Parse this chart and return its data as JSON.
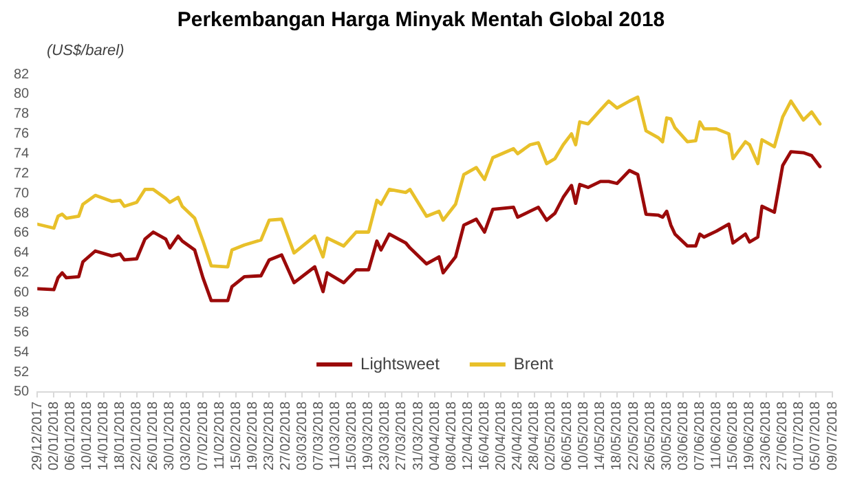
{
  "chart_data": {
    "type": "line",
    "title": "Perkembangan Harga Minyak Mentah Global 2018",
    "ylabel": "(US$/barel)",
    "x": [
      "2017-12-29",
      "2018-01-02",
      "2018-01-03",
      "2018-01-04",
      "2018-01-05",
      "2018-01-08",
      "2018-01-09",
      "2018-01-12",
      "2018-01-16",
      "2018-01-18",
      "2018-01-19",
      "2018-01-22",
      "2018-01-24",
      "2018-01-26",
      "2018-01-29",
      "2018-01-30",
      "2018-02-01",
      "2018-02-02",
      "2018-02-05",
      "2018-02-07",
      "2018-02-09",
      "2018-02-13",
      "2018-02-14",
      "2018-02-17",
      "2018-02-21",
      "2018-02-23",
      "2018-02-26",
      "2018-03-01",
      "2018-03-06",
      "2018-03-08",
      "2018-03-09",
      "2018-03-13",
      "2018-03-16",
      "2018-03-19",
      "2018-03-21",
      "2018-03-22",
      "2018-03-24",
      "2018-03-28",
      "2018-03-29",
      "2018-04-02",
      "2018-04-05",
      "2018-04-06",
      "2018-04-09",
      "2018-04-11",
      "2018-04-14",
      "2018-04-16",
      "2018-04-18",
      "2018-04-23",
      "2018-04-24",
      "2018-04-27",
      "2018-04-29",
      "2018-05-01",
      "2018-05-03",
      "2018-05-05",
      "2018-05-07",
      "2018-05-08",
      "2018-05-09",
      "2018-05-11",
      "2018-05-14",
      "2018-05-16",
      "2018-05-18",
      "2018-05-21",
      "2018-05-23",
      "2018-05-25",
      "2018-05-28",
      "2018-05-29",
      "2018-05-30",
      "2018-05-31",
      "2018-06-01",
      "2018-06-04",
      "2018-06-06",
      "2018-06-07",
      "2018-06-08",
      "2018-06-11",
      "2018-06-14",
      "2018-06-15",
      "2018-06-18",
      "2018-06-19",
      "2018-06-21",
      "2018-06-22",
      "2018-06-25",
      "2018-06-27",
      "2018-06-29",
      "2018-07-02",
      "2018-07-04",
      "2018-07-06"
    ],
    "series": [
      {
        "name": "Lightsweet",
        "color": "#9b0a0a",
        "values": [
          60.4,
          60.3,
          61.5,
          62.0,
          61.5,
          61.6,
          63.1,
          64.2,
          63.7,
          63.9,
          63.3,
          63.4,
          65.4,
          66.1,
          65.4,
          64.5,
          65.7,
          65.2,
          64.3,
          61.5,
          59.2,
          59.2,
          60.6,
          61.6,
          61.7,
          63.3,
          63.8,
          61.0,
          62.6,
          60.1,
          62.0,
          61.0,
          62.3,
          62.3,
          65.2,
          64.3,
          65.9,
          65.0,
          64.5,
          62.9,
          63.6,
          62.0,
          63.6,
          66.8,
          67.4,
          66.1,
          68.4,
          68.6,
          67.6,
          68.2,
          68.6,
          67.3,
          68.0,
          69.6,
          70.8,
          69.0,
          70.9,
          70.6,
          71.2,
          71.2,
          71.0,
          72.3,
          71.9,
          67.9,
          67.8,
          67.6,
          68.2,
          66.8,
          65.9,
          64.7,
          64.7,
          65.9,
          65.6,
          66.2,
          66.9,
          65.0,
          65.9,
          65.1,
          65.6,
          68.7,
          68.1,
          72.8,
          74.2,
          74.1,
          73.8,
          72.7
        ]
      },
      {
        "name": "Brent",
        "color": "#e8c02a",
        "values": [
          66.9,
          66.5,
          67.7,
          67.9,
          67.5,
          67.7,
          68.9,
          69.8,
          69.2,
          69.3,
          68.7,
          69.1,
          70.4,
          70.4,
          69.5,
          69.1,
          69.6,
          68.7,
          67.5,
          65.2,
          62.7,
          62.6,
          64.3,
          64.8,
          65.3,
          67.3,
          67.4,
          64.0,
          65.7,
          63.6,
          65.5,
          64.7,
          66.1,
          66.1,
          69.3,
          68.9,
          70.4,
          70.1,
          70.4,
          67.7,
          68.2,
          67.3,
          68.9,
          71.9,
          72.6,
          71.4,
          73.6,
          74.5,
          74.0,
          74.9,
          75.1,
          73.0,
          73.5,
          74.9,
          76.0,
          74.9,
          77.2,
          77.0,
          78.4,
          79.3,
          78.6,
          79.3,
          79.7,
          76.3,
          75.6,
          75.2,
          77.6,
          77.5,
          76.6,
          75.2,
          75.3,
          77.2,
          76.5,
          76.5,
          76.0,
          73.5,
          75.2,
          74.9,
          73.0,
          75.4,
          74.7,
          77.7,
          79.3,
          77.4,
          78.2,
          77.0
        ]
      }
    ],
    "xlim": [
      "2017-12-29",
      "2018-07-09"
    ],
    "xticks": [
      {
        "value": "2017-12-29",
        "label": "29/12/2017"
      },
      {
        "value": "2018-01-02",
        "label": "02/01/2018"
      },
      {
        "value": "2018-01-06",
        "label": "06/01/2018"
      },
      {
        "value": "2018-01-10",
        "label": "10/01/2018"
      },
      {
        "value": "2018-01-14",
        "label": "14/01/2018"
      },
      {
        "value": "2018-01-18",
        "label": "18/01/2018"
      },
      {
        "value": "2018-01-22",
        "label": "22/01/2018"
      },
      {
        "value": "2018-01-26",
        "label": "26/01/2018"
      },
      {
        "value": "2018-01-30",
        "label": "30/01/2018"
      },
      {
        "value": "2018-02-03",
        "label": "03/02/2018"
      },
      {
        "value": "2018-02-07",
        "label": "07/02/2018"
      },
      {
        "value": "2018-02-11",
        "label": "11/02/2018"
      },
      {
        "value": "2018-02-15",
        "label": "15/02/2018"
      },
      {
        "value": "2018-02-19",
        "label": "19/02/2018"
      },
      {
        "value": "2018-02-23",
        "label": "23/02/2018"
      },
      {
        "value": "2018-02-27",
        "label": "27/02/2018"
      },
      {
        "value": "2018-03-03",
        "label": "03/03/2018"
      },
      {
        "value": "2018-03-07",
        "label": "07/03/2018"
      },
      {
        "value": "2018-03-11",
        "label": "11/03/2018"
      },
      {
        "value": "2018-03-15",
        "label": "15/03/2018"
      },
      {
        "value": "2018-03-19",
        "label": "19/03/2018"
      },
      {
        "value": "2018-03-23",
        "label": "23/03/2018"
      },
      {
        "value": "2018-03-27",
        "label": "27/03/2018"
      },
      {
        "value": "2018-03-31",
        "label": "31/03/2018"
      },
      {
        "value": "2018-04-04",
        "label": "04/04/2018"
      },
      {
        "value": "2018-04-08",
        "label": "08/04/2018"
      },
      {
        "value": "2018-04-12",
        "label": "12/04/2018"
      },
      {
        "value": "2018-04-16",
        "label": "16/04/2018"
      },
      {
        "value": "2018-04-20",
        "label": "20/04/2018"
      },
      {
        "value": "2018-04-24",
        "label": "24/04/2018"
      },
      {
        "value": "2018-04-28",
        "label": "28/04/2018"
      },
      {
        "value": "2018-05-02",
        "label": "02/05/2018"
      },
      {
        "value": "2018-05-06",
        "label": "06/05/2018"
      },
      {
        "value": "2018-05-10",
        "label": "10/05/2018"
      },
      {
        "value": "2018-05-14",
        "label": "14/05/2018"
      },
      {
        "value": "2018-05-18",
        "label": "18/05/2018"
      },
      {
        "value": "2018-05-22",
        "label": "22/05/2018"
      },
      {
        "value": "2018-05-26",
        "label": "26/05/2018"
      },
      {
        "value": "2018-05-30",
        "label": "30/05/2018"
      },
      {
        "value": "2018-06-03",
        "label": "03/06/2018"
      },
      {
        "value": "2018-06-07",
        "label": "07/06/2018"
      },
      {
        "value": "2018-06-11",
        "label": "11/06/2018"
      },
      {
        "value": "2018-06-15",
        "label": "15/06/2018"
      },
      {
        "value": "2018-06-19",
        "label": "19/06/2018"
      },
      {
        "value": "2018-06-23",
        "label": "23/06/2018"
      },
      {
        "value": "2018-06-27",
        "label": "27/06/2018"
      },
      {
        "value": "2018-07-01",
        "label": "01/07/2018"
      },
      {
        "value": "2018-07-05",
        "label": "05/07/2018"
      },
      {
        "value": "2018-07-09",
        "label": "09/07/2018"
      }
    ],
    "ylim": [
      50,
      82
    ],
    "yticks": [
      50,
      52,
      54,
      56,
      58,
      60,
      62,
      64,
      66,
      68,
      70,
      72,
      74,
      76,
      78,
      80,
      82
    ],
    "grid": false,
    "legend": "bottom",
    "marker": "none",
    "line_style": "solid"
  }
}
